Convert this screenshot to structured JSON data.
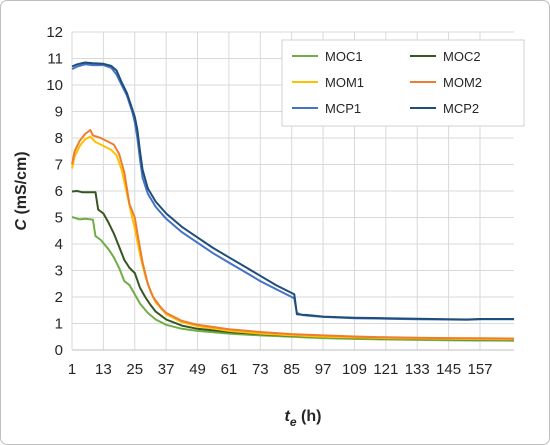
{
  "chart_data": {
    "type": "line",
    "xlabel": {
      "main": "t",
      "sub": "e",
      "unit": " (h)"
    },
    "ylabel": {
      "main": "C",
      "unit": " (mS/cm)"
    },
    "xlim": [
      1,
      170
    ],
    "ylim": [
      0,
      12
    ],
    "x_ticks": [
      1,
      13,
      25,
      37,
      49,
      61,
      73,
      85,
      97,
      109,
      121,
      133,
      145,
      157
    ],
    "y_ticks": [
      0,
      1,
      2,
      3,
      4,
      5,
      6,
      7,
      8,
      9,
      10,
      11,
      12
    ],
    "grid": true,
    "legend_position": "top-right",
    "series": [
      {
        "name": "MOC1",
        "color": "#70ad47",
        "points": [
          [
            1,
            5.02
          ],
          [
            4,
            4.93
          ],
          [
            6,
            4.95
          ],
          [
            9,
            4.92
          ],
          [
            10,
            4.3
          ],
          [
            12,
            4.15
          ],
          [
            15,
            3.8
          ],
          [
            17,
            3.5
          ],
          [
            19,
            3.1
          ],
          [
            21,
            2.6
          ],
          [
            23,
            2.45
          ],
          [
            25,
            2.1
          ],
          [
            27,
            1.75
          ],
          [
            30,
            1.4
          ],
          [
            33,
            1.15
          ],
          [
            37,
            0.95
          ],
          [
            43,
            0.8
          ],
          [
            49,
            0.72
          ],
          [
            61,
            0.62
          ],
          [
            73,
            0.55
          ],
          [
            85,
            0.5
          ],
          [
            97,
            0.45
          ],
          [
            109,
            0.42
          ],
          [
            121,
            0.4
          ],
          [
            133,
            0.38
          ],
          [
            145,
            0.37
          ],
          [
            157,
            0.36
          ],
          [
            170,
            0.35
          ]
        ]
      },
      {
        "name": "MOC2",
        "color": "#375623",
        "points": [
          [
            1,
            5.98
          ],
          [
            3,
            6.0
          ],
          [
            5,
            5.95
          ],
          [
            8,
            5.95
          ],
          [
            10,
            5.95
          ],
          [
            11,
            5.3
          ],
          [
            13,
            5.15
          ],
          [
            15,
            4.8
          ],
          [
            17,
            4.4
          ],
          [
            19,
            3.9
          ],
          [
            21,
            3.4
          ],
          [
            23,
            3.1
          ],
          [
            25,
            2.9
          ],
          [
            27,
            2.35
          ],
          [
            29,
            2.0
          ],
          [
            31,
            1.7
          ],
          [
            33,
            1.45
          ],
          [
            37,
            1.15
          ],
          [
            43,
            0.92
          ],
          [
            49,
            0.8
          ],
          [
            61,
            0.68
          ],
          [
            73,
            0.6
          ],
          [
            85,
            0.54
          ],
          [
            97,
            0.5
          ],
          [
            109,
            0.46
          ],
          [
            121,
            0.44
          ],
          [
            133,
            0.42
          ],
          [
            145,
            0.41
          ],
          [
            157,
            0.4
          ],
          [
            170,
            0.39
          ]
        ]
      },
      {
        "name": "MOM1",
        "color": "#ffc000",
        "points": [
          [
            1,
            6.85
          ],
          [
            2,
            7.3
          ],
          [
            4,
            7.7
          ],
          [
            6,
            7.95
          ],
          [
            8,
            8.05
          ],
          [
            10,
            7.85
          ],
          [
            13,
            7.7
          ],
          [
            16,
            7.55
          ],
          [
            18,
            7.35
          ],
          [
            20,
            6.8
          ],
          [
            22,
            5.9
          ],
          [
            24,
            5.0
          ],
          [
            25,
            4.6
          ],
          [
            27,
            3.6
          ],
          [
            29,
            2.8
          ],
          [
            31,
            2.2
          ],
          [
            33,
            1.8
          ],
          [
            37,
            1.35
          ],
          [
            43,
            1.05
          ],
          [
            49,
            0.9
          ],
          [
            61,
            0.72
          ],
          [
            73,
            0.62
          ],
          [
            85,
            0.55
          ],
          [
            97,
            0.5
          ],
          [
            109,
            0.47
          ],
          [
            121,
            0.45
          ],
          [
            133,
            0.43
          ],
          [
            145,
            0.42
          ],
          [
            157,
            0.41
          ],
          [
            170,
            0.4
          ]
        ]
      },
      {
        "name": "MOM2",
        "color": "#ed7d31",
        "points": [
          [
            1,
            7.0
          ],
          [
            2,
            7.5
          ],
          [
            4,
            7.9
          ],
          [
            6,
            8.15
          ],
          [
            8,
            8.3
          ],
          [
            9,
            8.1
          ],
          [
            12,
            8.0
          ],
          [
            15,
            7.85
          ],
          [
            17,
            7.75
          ],
          [
            19,
            7.4
          ],
          [
            21,
            6.7
          ],
          [
            23,
            5.5
          ],
          [
            25,
            5.0
          ],
          [
            26,
            4.4
          ],
          [
            28,
            3.3
          ],
          [
            30,
            2.5
          ],
          [
            32,
            2.0
          ],
          [
            35,
            1.6
          ],
          [
            37,
            1.4
          ],
          [
            43,
            1.1
          ],
          [
            49,
            0.95
          ],
          [
            61,
            0.78
          ],
          [
            73,
            0.68
          ],
          [
            85,
            0.6
          ],
          [
            97,
            0.55
          ],
          [
            109,
            0.51
          ],
          [
            121,
            0.48
          ],
          [
            133,
            0.46
          ],
          [
            145,
            0.45
          ],
          [
            157,
            0.44
          ],
          [
            170,
            0.43
          ]
        ]
      },
      {
        "name": "MCP1",
        "color": "#4472c4",
        "points": [
          [
            1,
            10.6
          ],
          [
            3,
            10.7
          ],
          [
            6,
            10.78
          ],
          [
            9,
            10.75
          ],
          [
            13,
            10.75
          ],
          [
            16,
            10.65
          ],
          [
            18,
            10.4
          ],
          [
            20,
            10.0
          ],
          [
            22,
            9.6
          ],
          [
            24,
            9.0
          ],
          [
            25,
            8.6
          ],
          [
            26,
            8.0
          ],
          [
            27,
            7.2
          ],
          [
            28,
            6.5
          ],
          [
            30,
            5.9
          ],
          [
            33,
            5.4
          ],
          [
            37,
            4.95
          ],
          [
            43,
            4.45
          ],
          [
            49,
            4.05
          ],
          [
            55,
            3.65
          ],
          [
            61,
            3.3
          ],
          [
            67,
            2.95
          ],
          [
            73,
            2.6
          ],
          [
            79,
            2.3
          ],
          [
            85,
            2.0
          ],
          [
            86,
            1.95
          ],
          [
            87,
            1.4
          ],
          [
            89,
            1.32
          ],
          [
            91,
            1.3
          ],
          [
            97,
            1.25
          ],
          [
            109,
            1.2
          ],
          [
            121,
            1.18
          ],
          [
            133,
            1.16
          ],
          [
            145,
            1.15
          ],
          [
            152,
            1.14
          ],
          [
            157,
            1.16
          ],
          [
            170,
            1.16
          ]
        ]
      },
      {
        "name": "MCP2",
        "color": "#1f4e79",
        "points": [
          [
            1,
            10.7
          ],
          [
            3,
            10.78
          ],
          [
            6,
            10.85
          ],
          [
            9,
            10.82
          ],
          [
            13,
            10.8
          ],
          [
            16,
            10.72
          ],
          [
            18,
            10.55
          ],
          [
            20,
            10.1
          ],
          [
            22,
            9.7
          ],
          [
            24,
            9.1
          ],
          [
            25,
            8.8
          ],
          [
            26,
            8.3
          ],
          [
            27,
            7.5
          ],
          [
            28,
            6.8
          ],
          [
            30,
            6.1
          ],
          [
            33,
            5.6
          ],
          [
            37,
            5.15
          ],
          [
            43,
            4.65
          ],
          [
            49,
            4.25
          ],
          [
            55,
            3.85
          ],
          [
            61,
            3.5
          ],
          [
            67,
            3.15
          ],
          [
            73,
            2.8
          ],
          [
            79,
            2.45
          ],
          [
            85,
            2.15
          ],
          [
            86,
            2.1
          ],
          [
            87,
            1.35
          ],
          [
            89,
            1.33
          ],
          [
            91,
            1.32
          ],
          [
            97,
            1.26
          ],
          [
            109,
            1.22
          ],
          [
            121,
            1.2
          ],
          [
            133,
            1.18
          ],
          [
            145,
            1.16
          ],
          [
            152,
            1.15
          ],
          [
            157,
            1.17
          ],
          [
            170,
            1.17
          ]
        ]
      }
    ]
  }
}
